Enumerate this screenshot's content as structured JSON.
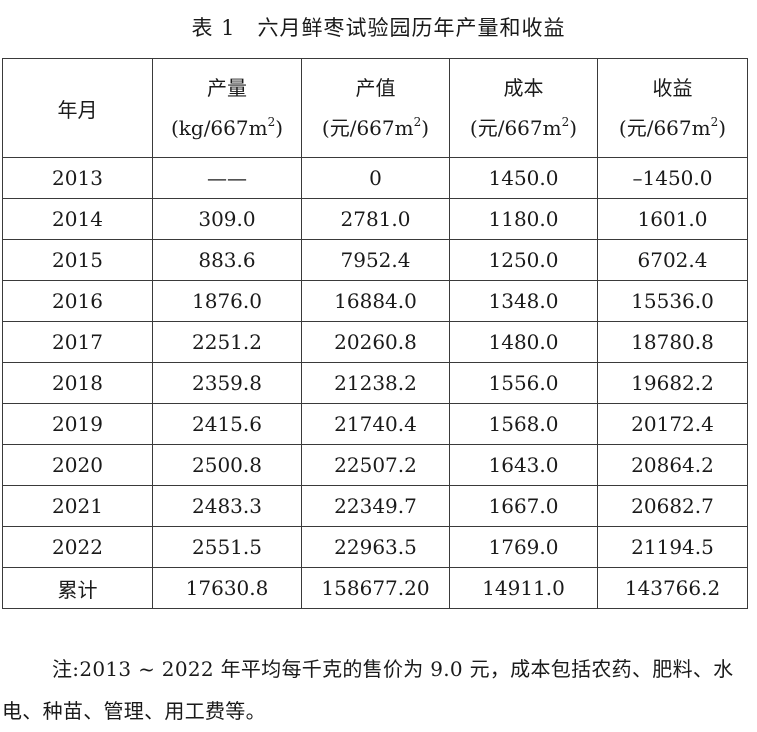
{
  "caption": {
    "number": "表 1",
    "title": "六月鲜枣试验园历年产量和收益"
  },
  "table": {
    "headers": [
      {
        "name": "年月",
        "unit": "",
        "sup": ""
      },
      {
        "name": "产量",
        "unit": "(kg/667m",
        "sup": "2",
        "close": ")"
      },
      {
        "name": "产值",
        "unit": "(元/667m",
        "sup": "2",
        "close": ")"
      },
      {
        "name": "成本",
        "unit": "(元/667m",
        "sup": "2",
        "close": ")"
      },
      {
        "name": "收益",
        "unit": "(元/667m",
        "sup": "2",
        "close": ")"
      }
    ],
    "rows": [
      [
        "2013",
        "——",
        "0",
        "1450.0",
        "–1450.0"
      ],
      [
        "2014",
        "309.0",
        "2781.0",
        "1180.0",
        "1601.0"
      ],
      [
        "2015",
        "883.6",
        "7952.4",
        "1250.0",
        "6702.4"
      ],
      [
        "2016",
        "1876.0",
        "16884.0",
        "1348.0",
        "15536.0"
      ],
      [
        "2017",
        "2251.2",
        "20260.8",
        "1480.0",
        "18780.8"
      ],
      [
        "2018",
        "2359.8",
        "21238.2",
        "1556.0",
        "19682.2"
      ],
      [
        "2019",
        "2415.6",
        "21740.4",
        "1568.0",
        "20172.4"
      ],
      [
        "2020",
        "2500.8",
        "22507.2",
        "1643.0",
        "20864.2"
      ],
      [
        "2021",
        "2483.3",
        "22349.7",
        "1667.0",
        "20682.7"
      ],
      [
        "2022",
        "2551.5",
        "22963.5",
        "1769.0",
        "21194.5"
      ],
      [
        "累计",
        "17630.8",
        "158677.20",
        "14911.0",
        "143766.2"
      ]
    ]
  },
  "note": "注:2013 ~ 2022 年平均每千克的售价为 9.0 元，成本包括农药、肥料、水电、种苗、管理、用工费等。"
}
